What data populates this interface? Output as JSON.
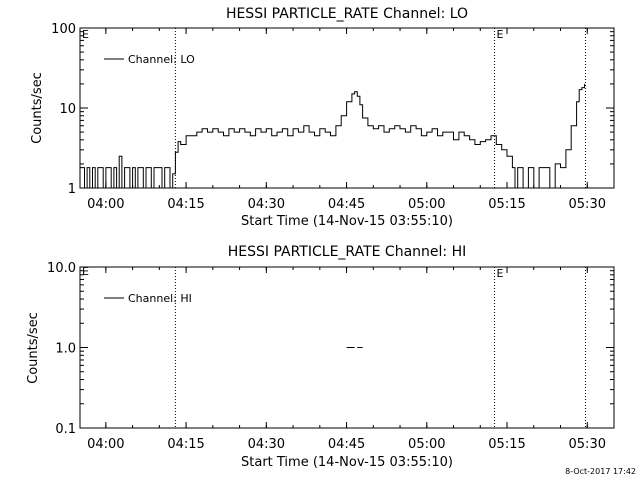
{
  "footer_stamp": "8-Oct-2017 17:42",
  "chart_data": [
    {
      "type": "line",
      "title": "HESSI PARTICLE_RATE Channel: LO",
      "xlabel": "Start Time (14-Nov-15 03:55:10)",
      "ylabel": "Counts/sec",
      "y_scale": "log",
      "xlim": [
        "03:55:10",
        "05:35:00"
      ],
      "ylim": [
        1,
        100
      ],
      "x_ticks": [
        "04:00",
        "04:15",
        "04:30",
        "04:45",
        "05:00",
        "05:15",
        "05:30"
      ],
      "y_ticks": [
        "1",
        "10",
        "100"
      ],
      "legend": {
        "label": "Channel: LO",
        "placement": "top-left"
      },
      "grid": false,
      "markers": [
        {
          "time": "04:13:00",
          "label": ""
        },
        {
          "time": "05:12:40",
          "label": "E"
        },
        {
          "time": "05:29:40",
          "label": ""
        }
      ],
      "corner_label": "E",
      "series": [
        {
          "name": "Channel: LO",
          "x": [
            "03:55:10",
            "03:56:00",
            "03:56:30",
            "03:57:00",
            "03:57:30",
            "03:58:00",
            "03:58:30",
            "03:59:00",
            "03:59:30",
            "04:00:00",
            "04:00:30",
            "04:01:00",
            "04:01:30",
            "04:02:00",
            "04:02:30",
            "04:03:00",
            "04:03:30",
            "04:04:00",
            "04:04:30",
            "04:05:00",
            "04:05:30",
            "04:06:00",
            "04:06:30",
            "04:07:00",
            "04:07:30",
            "04:08:00",
            "04:08:30",
            "04:09:00",
            "04:09:30",
            "04:10:00",
            "04:10:30",
            "04:11:00",
            "04:11:30",
            "04:12:00",
            "04:12:30",
            "04:13:00",
            "04:13:30",
            "04:14:00",
            "04:15:00",
            "04:16:00",
            "04:17:00",
            "04:18:00",
            "04:19:00",
            "04:20:00",
            "04:21:00",
            "04:22:00",
            "04:23:00",
            "04:24:00",
            "04:25:00",
            "04:26:00",
            "04:27:00",
            "04:28:00",
            "04:29:00",
            "04:30:00",
            "04:31:00",
            "04:32:00",
            "04:33:00",
            "04:34:00",
            "04:35:00",
            "04:36:00",
            "04:37:00",
            "04:38:00",
            "04:39:00",
            "04:40:00",
            "04:41:00",
            "04:42:00",
            "04:43:00",
            "04:44:00",
            "04:45:00",
            "04:46:00",
            "04:46:30",
            "04:47:00",
            "04:47:30",
            "04:48:00",
            "04:49:00",
            "04:50:00",
            "04:51:00",
            "04:52:00",
            "04:53:00",
            "04:54:00",
            "04:55:00",
            "04:56:00",
            "04:57:00",
            "04:58:00",
            "04:59:00",
            "05:00:00",
            "05:01:00",
            "05:02:00",
            "05:03:00",
            "05:04:00",
            "05:05:00",
            "05:06:00",
            "05:07:00",
            "05:08:00",
            "05:09:00",
            "05:10:00",
            "05:11:00",
            "05:12:00",
            "05:12:30",
            "05:13:00",
            "05:14:00",
            "05:15:00",
            "05:16:00",
            "05:16:30",
            "05:17:00",
            "05:18:00",
            "05:19:00",
            "05:20:00",
            "05:21:00",
            "05:22:00",
            "05:23:00",
            "05:24:00",
            "05:25:00",
            "05:26:00",
            "05:27:00",
            "05:28:00",
            "05:28:30",
            "05:29:00",
            "05:29:30"
          ],
          "y": [
            1.8,
            1.0,
            1.8,
            1.0,
            1.8,
            1.0,
            1.8,
            1.8,
            1.0,
            1.8,
            1.8,
            1.0,
            1.8,
            1.0,
            2.5,
            1.0,
            1.8,
            1.8,
            1.0,
            1.8,
            1.0,
            1.8,
            1.8,
            1.0,
            1.8,
            1.8,
            1.0,
            1.8,
            1.8,
            1.8,
            1.0,
            1.8,
            1.8,
            1.0,
            1.5,
            2.8,
            3.8,
            3.5,
            4.5,
            4.5,
            5.0,
            5.5,
            5.0,
            5.5,
            5.0,
            4.5,
            5.5,
            5.0,
            5.5,
            5.0,
            4.5,
            5.5,
            5.0,
            5.5,
            4.5,
            5.0,
            5.5,
            4.5,
            5.5,
            5.0,
            6.0,
            5.0,
            4.5,
            5.5,
            5.0,
            4.5,
            6.0,
            8.0,
            12.0,
            15.0,
            16.0,
            14.0,
            11.0,
            7.5,
            6.0,
            5.5,
            6.0,
            5.0,
            5.5,
            6.0,
            5.5,
            5.0,
            6.0,
            5.5,
            4.5,
            5.0,
            5.5,
            4.5,
            5.0,
            5.0,
            4.0,
            5.0,
            4.5,
            4.0,
            3.5,
            3.8,
            4.0,
            4.5,
            4.5,
            3.5,
            3.0,
            2.5,
            1.8,
            1.0,
            1.8,
            1.0,
            1.8,
            1.0,
            1.8,
            1.8,
            1.0,
            2.0,
            1.8,
            3.0,
            6.0,
            12.0,
            17.0,
            18.0,
            20.0
          ]
        }
      ]
    },
    {
      "type": "line",
      "title": "HESSI PARTICLE_RATE Channel: HI",
      "xlabel": "Start Time (14-Nov-15 03:55:10)",
      "ylabel": "Counts/sec",
      "y_scale": "log",
      "xlim": [
        "03:55:10",
        "05:35:00"
      ],
      "ylim": [
        0.1,
        10
      ],
      "x_ticks": [
        "04:00",
        "04:15",
        "04:30",
        "04:45",
        "05:00",
        "05:15",
        "05:30"
      ],
      "y_ticks": [
        "0.1",
        "1.0",
        "10.0"
      ],
      "legend": {
        "label": "Channel: HI",
        "placement": "top-left"
      },
      "grid": false,
      "markers": [
        {
          "time": "04:13:00",
          "label": ""
        },
        {
          "time": "05:12:40",
          "label": "E"
        },
        {
          "time": "05:29:40",
          "label": ""
        }
      ],
      "corner_label": "E",
      "series": [
        {
          "name": "Channel: HI",
          "segments": [
            {
              "x": [
                "04:45:00",
                "04:46:30"
              ],
              "y": [
                1.0,
                1.0
              ]
            },
            {
              "x": [
                "04:47:00",
                "04:48:00"
              ],
              "y": [
                1.0,
                1.0
              ]
            }
          ]
        }
      ]
    }
  ]
}
